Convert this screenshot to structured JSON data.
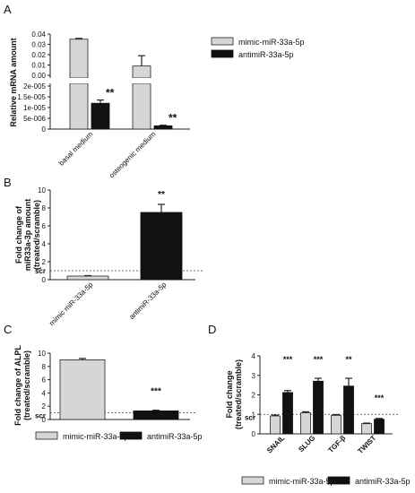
{
  "chart_data": [
    {
      "panel": "A",
      "type": "bar",
      "ylabel": "Relative mRNA amount",
      "categories": [
        "basal medium",
        "osteogenic medium"
      ],
      "upper_ticks": [
        "0.03",
        "0.04",
        "0.02",
        "0.01",
        "0.00"
      ],
      "upper_ylim": [
        0,
        0.04
      ],
      "lower_ticks": [
        "2e-005",
        "1.5e-005",
        "1e-005",
        "5e-006",
        "0"
      ],
      "lower_ylim": [
        0,
        2e-05
      ],
      "series": [
        {
          "name": "mimic-miR-33a-5p",
          "values": [
            0.035,
            0.009
          ],
          "errors": [
            0.0008,
            0.01
          ]
        },
        {
          "name": "antimiR-33a-5p",
          "values": [
            1.2e-05,
            1.5e-06
          ],
          "errors": [
            1.5e-06,
            3e-07
          ]
        }
      ],
      "annotations": [
        "**",
        "**"
      ]
    },
    {
      "panel": "B",
      "type": "bar",
      "ylabel_line1": "Fold change of",
      "ylabel_line2": "miR33a-3p amount",
      "ylabel_line3": "(treated/scramble)",
      "categories": [
        "mimic miR-33a-5p",
        "antimiR-33a-5p"
      ],
      "values": [
        0.4,
        7.5
      ],
      "errors": [
        0.05,
        0.9
      ],
      "ylim": [
        0,
        10
      ],
      "yticks": [
        "0",
        "2",
        "4",
        "6",
        "8",
        "10"
      ],
      "scr_label": "scr",
      "scr_value": 1,
      "annotation": "**"
    },
    {
      "panel": "C",
      "type": "bar",
      "ylabel_line1": "Fold change of ALPL",
      "ylabel_line2": "(treated/scramble)",
      "series": [
        {
          "name": "mimic-miR-33a-5p",
          "value": 9.0,
          "error": 0.2
        },
        {
          "name": "antimiR-33a-5p",
          "value": 1.3,
          "error": 0.1
        }
      ],
      "ylim": [
        0,
        10
      ],
      "yticks": [
        "0",
        "2",
        "4",
        "6",
        "8",
        "10"
      ],
      "scr_label": "scr",
      "scr_value": 1,
      "annotation": "***"
    },
    {
      "panel": "D",
      "type": "bar",
      "ylabel_line1": "Fold change",
      "ylabel_line2": "(treated/scramble)",
      "categories": [
        "SNAIL",
        "SLUG",
        "TGF-β",
        "TWIST"
      ],
      "series": [
        {
          "name": "mimic-miR-33a-5p",
          "values": [
            0.92,
            1.08,
            0.95,
            0.52
          ],
          "errors": [
            0.04,
            0.05,
            0.04,
            0.03
          ]
        },
        {
          "name": "antimiR-33a-5p",
          "values": [
            2.12,
            2.7,
            2.45,
            0.75
          ],
          "errors": [
            0.1,
            0.15,
            0.4,
            0.04
          ]
        }
      ],
      "ylim": [
        0,
        4
      ],
      "yticks": [
        "0",
        "1",
        "2",
        "3",
        "4"
      ],
      "scr_label": "scr",
      "scr_value": 1,
      "annotations": [
        "***",
        "***",
        "**",
        "***"
      ]
    }
  ],
  "colors": {
    "light": "#d6d6d6",
    "dark": "#111111"
  }
}
